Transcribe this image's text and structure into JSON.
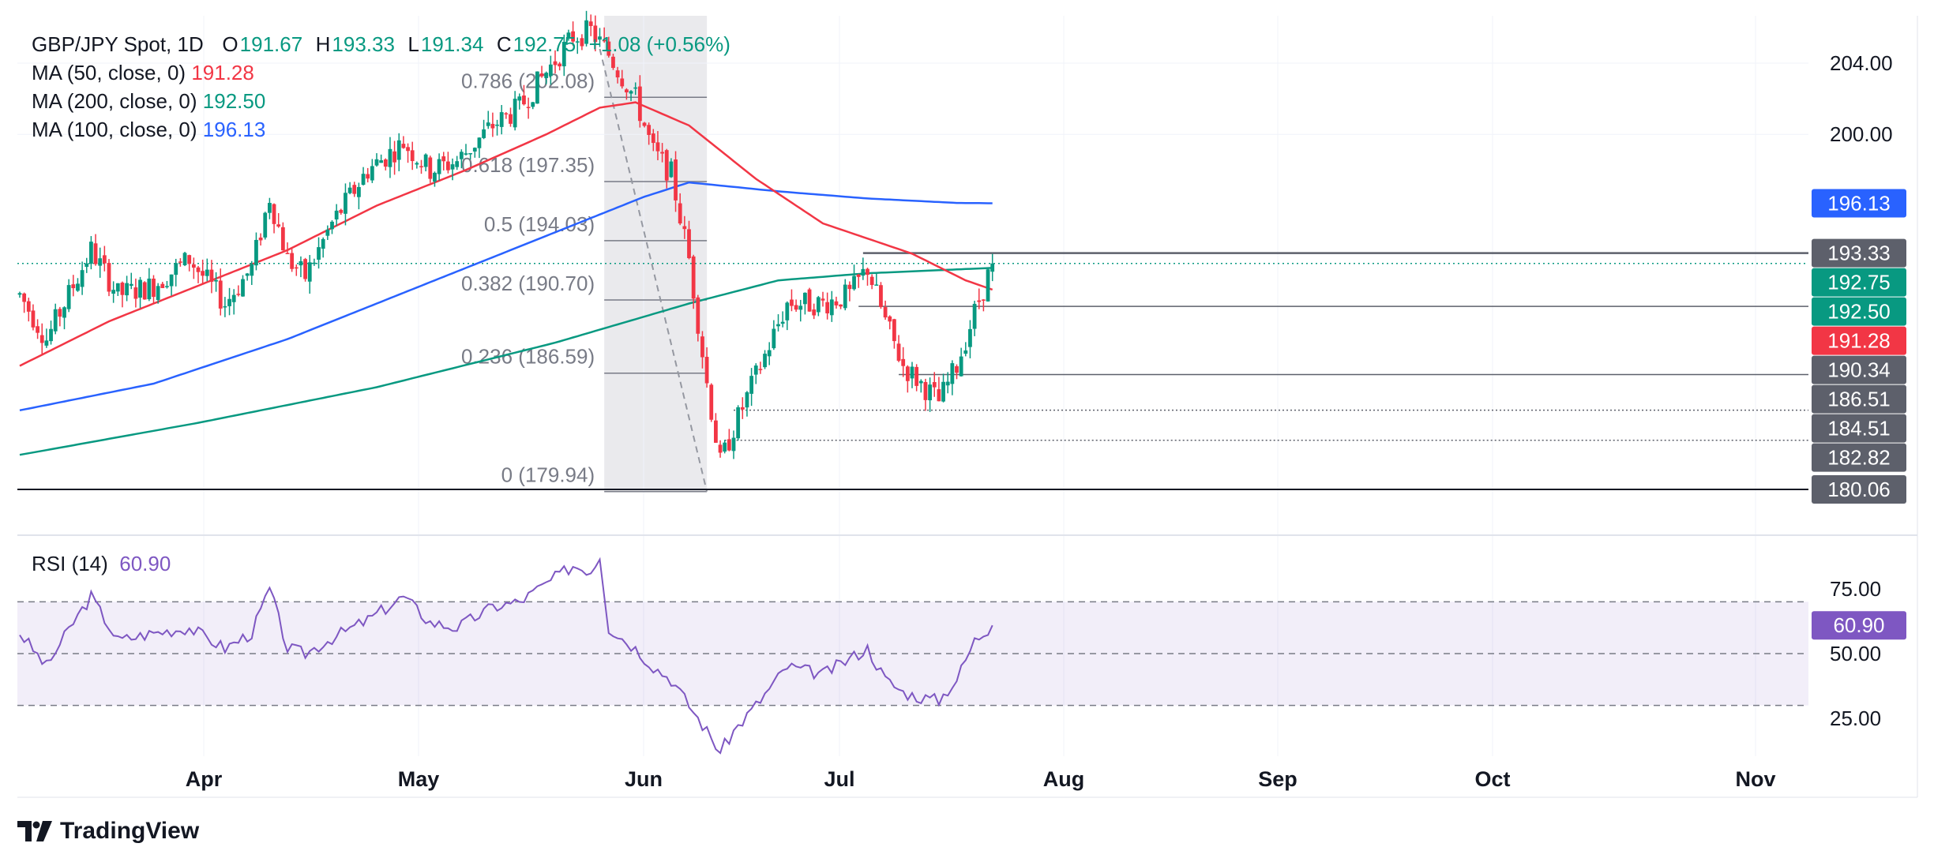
{
  "header": {
    "symbol": "GBP/JPY Spot, 1D",
    "ohlc": {
      "o_label": "O",
      "o": "191.67",
      "h_label": "H",
      "h": "193.33",
      "l_label": "L",
      "l": "191.34",
      "c_label": "C",
      "c": "192.75",
      "change": "+1.08 (+0.56%)"
    },
    "ma50": {
      "label": "MA (50, close, 0)",
      "value": "191.28"
    },
    "ma200": {
      "label": "MA (200, close, 0)",
      "value": "192.50"
    },
    "ma100": {
      "label": "MA (100, close, 0)",
      "value": "196.13"
    },
    "rsi": {
      "label": "RSI (14)",
      "value": "60.90"
    }
  },
  "brand": {
    "name": "TradingView"
  },
  "colors": {
    "up": "#089981",
    "down": "#f23645",
    "ma50": "#f23645",
    "ma200": "#089981",
    "ma100": "#2962ff",
    "rsi": "#7e57c2",
    "fib": "#787b86"
  },
  "chart_data": [
    {
      "type": "candlestick",
      "price_axis": {
        "ticks": [
          "204.00",
          "200.00"
        ],
        "range": [
          178.2,
          207.2
        ]
      },
      "time_axis": {
        "labels": [
          "Apr",
          "May",
          "Jun",
          "Jul",
          "Aug",
          "Sep",
          "Oct",
          "Nov"
        ]
      },
      "fibonacci": [
        {
          "label": "0.786 (202.08)",
          "value": 202.08
        },
        {
          "label": "0.618 (197.35)",
          "value": 197.35
        },
        {
          "label": "0.5 (194.03)",
          "value": 194.03
        },
        {
          "label": "0.382 (190.70)",
          "value": 190.7
        },
        {
          "label": "0.236 (186.59)",
          "value": 186.59
        },
        {
          "label": "0 (179.94)",
          "value": 179.94
        }
      ],
      "price_tags": [
        {
          "label": "196.13",
          "value": 196.13,
          "color": "#2962ff"
        },
        {
          "label": "193.33",
          "value": 193.33,
          "color": "#5d606b"
        },
        {
          "label": "192.75",
          "value": 192.75,
          "color": "#089981"
        },
        {
          "label": "192.50",
          "value": 192.5,
          "color": "#089981"
        },
        {
          "label": "191.28",
          "value": 191.28,
          "color": "#f23645"
        },
        {
          "label": "190.34",
          "value": 190.34,
          "color": "#5d606b"
        },
        {
          "label": "186.51",
          "value": 186.51,
          "color": "#5d606b"
        },
        {
          "label": "184.51",
          "value": 184.51,
          "color": "#5d606b"
        },
        {
          "label": "182.82",
          "value": 182.82,
          "color": "#5d606b"
        },
        {
          "label": "180.06",
          "value": 180.06,
          "color": "#5d606b"
        }
      ],
      "horizontal_levels": [
        193.33,
        190.34,
        186.51,
        184.51,
        182.82,
        180.06
      ],
      "current_price": 192.75,
      "price_path_anchors": [
        [
          0,
          191.0
        ],
        [
          6,
          188.5
        ],
        [
          12,
          191.5
        ],
        [
          16,
          193.5
        ],
        [
          22,
          191.0
        ],
        [
          30,
          191.5
        ],
        [
          38,
          193.0
        ],
        [
          46,
          190.5
        ],
        [
          52,
          192.5
        ],
        [
          56,
          196.5
        ],
        [
          60,
          193.0
        ],
        [
          64,
          192.0
        ],
        [
          70,
          195.0
        ],
        [
          78,
          198.0
        ],
        [
          86,
          199.5
        ],
        [
          92,
          198.0
        ],
        [
          98,
          198.5
        ],
        [
          106,
          200.5
        ],
        [
          112,
          201.5
        ],
        [
          118,
          203.5
        ],
        [
          124,
          205.5
        ],
        [
          128,
          205.8
        ],
        [
          132,
          204.5
        ],
        [
          138,
          202.0
        ],
        [
          142,
          199.0
        ],
        [
          146,
          197.8
        ],
        [
          150,
          193.0
        ],
        [
          154,
          186.0
        ],
        [
          157,
          181.5
        ],
        [
          160,
          183.5
        ],
        [
          166,
          187.0
        ],
        [
          172,
          190.5
        ],
        [
          180,
          190.5
        ],
        [
          186,
          191.0
        ],
        [
          190,
          192.5
        ],
        [
          194,
          189.5
        ],
        [
          198,
          187.0
        ],
        [
          202,
          186.0
        ],
        [
          206,
          185.0
        ],
        [
          210,
          187.0
        ],
        [
          214,
          190.0
        ],
        [
          218,
          192.75
        ]
      ],
      "ma50_anchors": [
        [
          0,
          187.0
        ],
        [
          20,
          189.5
        ],
        [
          40,
          191.5
        ],
        [
          60,
          193.5
        ],
        [
          80,
          196.0
        ],
        [
          100,
          198.0
        ],
        [
          118,
          200.0
        ],
        [
          130,
          201.5
        ],
        [
          138,
          201.8
        ],
        [
          150,
          200.5
        ],
        [
          165,
          197.5
        ],
        [
          180,
          195.0
        ],
        [
          200,
          193.3
        ],
        [
          212,
          191.8
        ],
        [
          218,
          191.28
        ]
      ],
      "ma100_anchors": [
        [
          0,
          184.5
        ],
        [
          30,
          186.0
        ],
        [
          60,
          188.5
        ],
        [
          90,
          191.5
        ],
        [
          120,
          194.5
        ],
        [
          140,
          196.5
        ],
        [
          150,
          197.3
        ],
        [
          170,
          196.8
        ],
        [
          190,
          196.4
        ],
        [
          210,
          196.15
        ],
        [
          218,
          196.13
        ]
      ],
      "ma200_anchors": [
        [
          0,
          182.0
        ],
        [
          40,
          183.8
        ],
        [
          80,
          185.8
        ],
        [
          120,
          188.3
        ],
        [
          150,
          190.5
        ],
        [
          170,
          191.8
        ],
        [
          190,
          192.2
        ],
        [
          218,
          192.5
        ]
      ]
    },
    {
      "type": "line",
      "name": "RSI (14)",
      "y_ticks": [
        "75.00",
        "50.00",
        "25.00"
      ],
      "bands": {
        "upper": 70,
        "middle": 50,
        "lower": 30
      },
      "range": [
        10,
        92
      ],
      "current_value": 60.9,
      "anchors": [
        [
          0,
          58
        ],
        [
          6,
          45
        ],
        [
          12,
          62
        ],
        [
          16,
          72
        ],
        [
          22,
          55
        ],
        [
          30,
          58
        ],
        [
          38,
          60
        ],
        [
          46,
          52
        ],
        [
          52,
          58
        ],
        [
          56,
          75
        ],
        [
          60,
          52
        ],
        [
          64,
          50
        ],
        [
          70,
          56
        ],
        [
          78,
          63
        ],
        [
          86,
          72
        ],
        [
          92,
          62
        ],
        [
          98,
          60
        ],
        [
          106,
          68
        ],
        [
          112,
          70
        ],
        [
          118,
          77
        ],
        [
          124,
          84
        ],
        [
          128,
          82
        ],
        [
          130,
          88
        ],
        [
          132,
          60
        ],
        [
          138,
          52
        ],
        [
          142,
          45
        ],
        [
          146,
          40
        ],
        [
          150,
          30
        ],
        [
          154,
          20
        ],
        [
          157,
          12
        ],
        [
          160,
          20
        ],
        [
          166,
          32
        ],
        [
          172,
          45
        ],
        [
          180,
          42
        ],
        [
          186,
          48
        ],
        [
          190,
          52
        ],
        [
          194,
          40
        ],
        [
          198,
          35
        ],
        [
          202,
          33
        ],
        [
          206,
          32
        ],
        [
          210,
          40
        ],
        [
          214,
          55
        ],
        [
          218,
          60.9
        ]
      ]
    }
  ]
}
